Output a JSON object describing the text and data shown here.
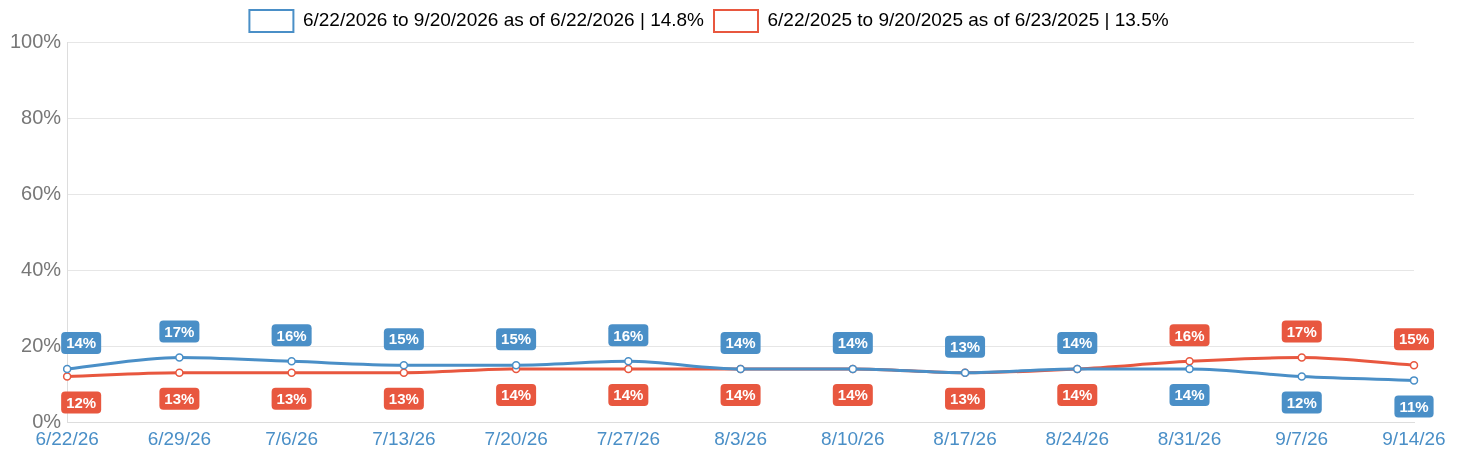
{
  "chart_data": {
    "type": "line",
    "categories": [
      "6/22/26",
      "6/29/26",
      "7/6/26",
      "7/13/26",
      "7/20/26",
      "7/27/26",
      "8/3/26",
      "8/10/26",
      "8/17/26",
      "8/24/26",
      "8/31/26",
      "9/7/26",
      "9/14/26"
    ],
    "series": [
      {
        "name": "6/22/2026 to 9/20/2026 as of 6/22/2026 | 14.8%",
        "color": "#4a8fc7",
        "values": [
          14,
          17,
          16,
          15,
          15,
          16,
          14,
          14,
          13,
          14,
          14,
          12,
          11
        ],
        "value_labels": [
          "14%",
          "17%",
          "16%",
          "15%",
          "15%",
          "16%",
          "14%",
          "14%",
          "13%",
          "14%",
          "14%",
          "12%",
          "11%"
        ]
      },
      {
        "name": "6/22/2025 to 9/20/2025 as of 6/23/2025 | 13.5%",
        "color": "#e8573f",
        "values": [
          12,
          13,
          13,
          13,
          14,
          14,
          14,
          14,
          13,
          14,
          16,
          17,
          15
        ],
        "value_labels": [
          "12%",
          "13%",
          "13%",
          "13%",
          "14%",
          "14%",
          "14%",
          "14%",
          "13%",
          "14%",
          "16%",
          "17%",
          "15%"
        ]
      }
    ],
    "ylim": [
      0,
      100
    ],
    "yticks": [
      {
        "value": 0,
        "label": "0%"
      },
      {
        "value": 20,
        "label": "20%"
      },
      {
        "value": 40,
        "label": "40%"
      },
      {
        "value": 60,
        "label": "60%"
      },
      {
        "value": 80,
        "label": "80%"
      },
      {
        "value": 100,
        "label": "100%"
      }
    ],
    "grid": "y",
    "legend": "top",
    "marker": "circle",
    "line_style": "solid"
  }
}
